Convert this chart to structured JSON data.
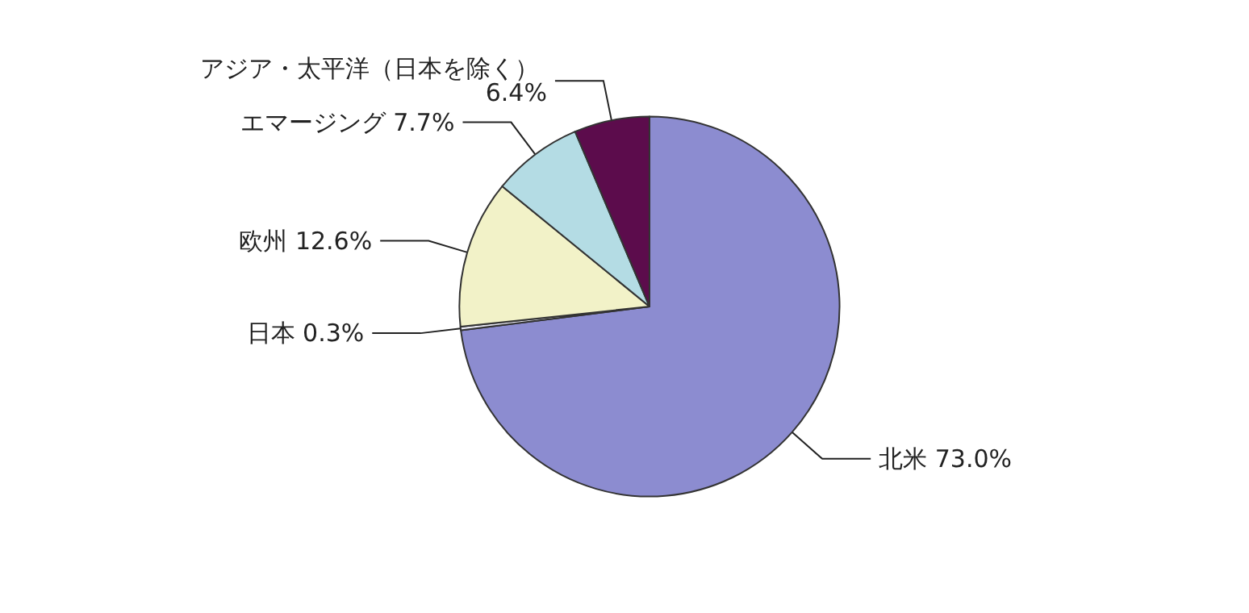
{
  "chart_data": {
    "type": "pie",
    "categories": [
      "北米",
      "日本",
      "欧州",
      "エマージング",
      "アジア・太平洋（日本を除く）"
    ],
    "values": [
      73.0,
      0.3,
      12.6,
      7.7,
      6.4
    ],
    "value_labels": [
      "73.0%",
      "0.3%",
      "12.6%",
      "7.7%",
      "6.4%"
    ],
    "colors": [
      "#8c8cd0",
      "#e8e8f4",
      "#f2f2c8",
      "#b4dce4",
      "#5c0c4c"
    ],
    "legend": false
  }
}
